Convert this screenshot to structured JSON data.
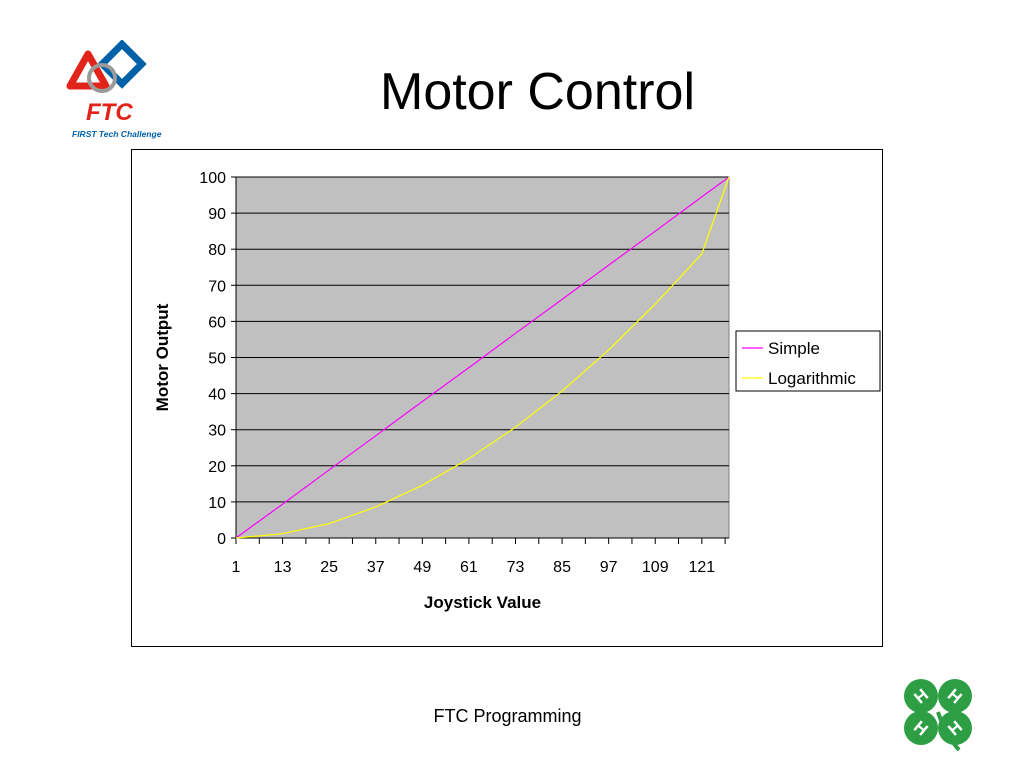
{
  "slide": {
    "title": "Motor Control",
    "footer": "FTC Programming",
    "logo_text": "FTC",
    "logo_subtext": "FIRST Tech Challenge",
    "clover_text": "H"
  },
  "colors": {
    "plot_background": "#c0c0c0",
    "simple_line": "#ff00ff",
    "logarithmic_line": "#ffff00",
    "logo_red": "#e2231a",
    "logo_blue": "#0061a8",
    "clover_green": "#2e9e45"
  },
  "chart_data": {
    "type": "line",
    "title": "",
    "xlabel": "Joystick Value",
    "ylabel": "Motor Output",
    "x_range": [
      1,
      128
    ],
    "x_tick_labels": [
      "1",
      "13",
      "25",
      "37",
      "49",
      "61",
      "73",
      "85",
      "97",
      "109",
      "121"
    ],
    "ylim": [
      0,
      100
    ],
    "y_tick_labels": [
      "0",
      "10",
      "20",
      "30",
      "40",
      "50",
      "60",
      "70",
      "80",
      "90",
      "100"
    ],
    "grid": "horizontal",
    "legend_position": "right",
    "x": [
      1,
      13,
      25,
      37,
      49,
      61,
      73,
      85,
      97,
      109,
      121,
      128
    ],
    "series": [
      {
        "name": "Simple",
        "values": [
          0,
          9.4,
          18.9,
          28.3,
          37.8,
          47.2,
          56.7,
          66.1,
          75.6,
          85.0,
          94.5,
          100
        ]
      },
      {
        "name": "Logarithmic",
        "values": [
          0,
          1.2,
          4.0,
          8.6,
          14.6,
          22.0,
          30.7,
          40.7,
          52.1,
          64.8,
          78.7,
          100
        ]
      }
    ]
  }
}
